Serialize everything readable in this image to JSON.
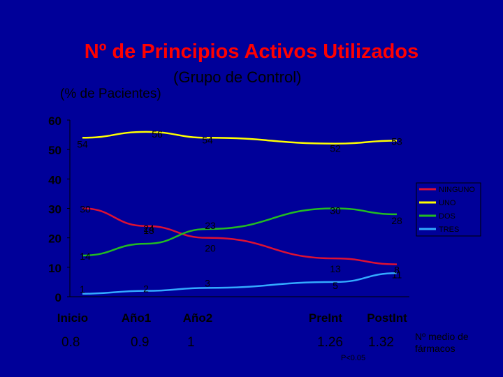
{
  "title": "Nº de Principios Activos Utilizados",
  "subtitle": "(Grupo de Control)",
  "y_axis_note": "(% de Pacientes)",
  "chart_data": {
    "type": "line",
    "categories": [
      "Inicio",
      "Año1",
      "Año2",
      "PreInt",
      "PostInt"
    ],
    "ylim": [
      0,
      60
    ],
    "yticks": [
      "0",
      "10",
      "20",
      "30",
      "40",
      "50",
      "60"
    ],
    "grid": false,
    "legend_position": "right",
    "series": [
      {
        "name": "NINGUNO",
        "color": "#DD1133",
        "values": [
          30,
          24,
          20,
          13,
          11
        ],
        "labels": [
          "30",
          "24",
          "20",
          "13",
          "11"
        ]
      },
      {
        "name": "UNO",
        "color": "#FFFF00",
        "values": [
          54,
          56,
          54,
          52,
          53
        ],
        "labels": [
          "54",
          "56",
          "54",
          "52",
          "53"
        ]
      },
      {
        "name": "DOS",
        "color": "#22BB22",
        "values": [
          14,
          18,
          23,
          30,
          28
        ],
        "labels": [
          "14",
          "18",
          "23",
          "30",
          "28"
        ]
      },
      {
        "name": "TRES",
        "color": "#33AAFF",
        "values": [
          1,
          2,
          3,
          5,
          8
        ],
        "labels": [
          "1",
          "2",
          "3",
          "5",
          "8"
        ]
      }
    ]
  },
  "medio_farmacos": {
    "values": [
      "0.8",
      "0.9",
      "1",
      "1.26",
      "1.32"
    ],
    "note": "Nº medio de fármacos",
    "pvalue": "P<0.05"
  }
}
